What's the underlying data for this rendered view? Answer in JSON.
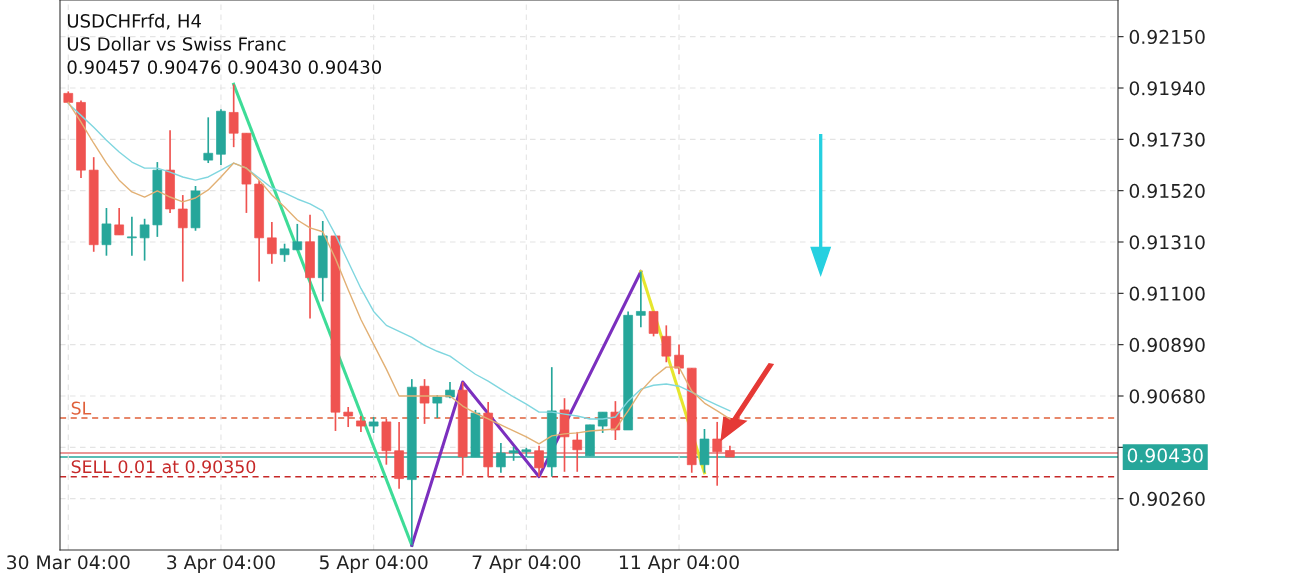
{
  "chart_data": {
    "type": "candlestick",
    "title": "USDCHFrfd, H4",
    "subtitle": "US Dollar vs Swiss Franc",
    "annotations": [
      "0.90457 0.90476 0.90430 0.90430"
    ],
    "categories": [
      "30 Mar 04:00",
      null,
      null,
      null,
      null,
      null,
      null,
      null,
      null,
      null,
      null,
      null,
      "3 Apr 04:00",
      null,
      null,
      null,
      null,
      null,
      null,
      null,
      null,
      null,
      null,
      null,
      "5 Apr 04:00",
      null,
      null,
      null,
      null,
      null,
      null,
      null,
      null,
      null,
      null,
      null,
      "7 Apr 04:00",
      null,
      null,
      null,
      null,
      null,
      null,
      null,
      null,
      null,
      null,
      null,
      "11 Apr 04:00",
      null,
      null,
      null,
      null,
      null,
      null,
      null,
      null,
      null,
      null,
      null,
      null,
      null,
      null,
      null,
      null,
      null,
      null,
      null,
      null,
      null,
      null,
      null,
      null,
      null,
      null,
      null,
      null,
      null,
      null,
      null,
      null,
      null,
      null
    ],
    "ohlc": [
      [
        0.91918,
        0.91926,
        0.91877,
        0.91881
      ],
      [
        0.91881,
        0.91889,
        0.91572,
        0.91604
      ],
      [
        0.91604,
        0.91657,
        0.9127,
        0.91299
      ],
      [
        0.91299,
        0.91449,
        0.91254,
        0.91384
      ],
      [
        0.9138,
        0.91449,
        0.91339,
        0.91339
      ],
      [
        0.91327,
        0.91413,
        0.91254,
        0.91331
      ],
      [
        0.91327,
        0.91405,
        0.91234,
        0.9138
      ],
      [
        0.9138,
        0.91637,
        0.91331,
        0.91604
      ],
      [
        0.91604,
        0.91767,
        0.91429,
        0.91445
      ],
      [
        0.91445,
        0.91502,
        0.91148,
        0.91368
      ],
      [
        0.91368,
        0.91539,
        0.91356,
        0.91519
      ],
      [
        0.91645,
        0.9182,
        0.91633,
        0.91673
      ],
      [
        0.91669,
        0.91853,
        0.91625,
        0.91845
      ],
      [
        0.9184,
        0.91955,
        0.91698,
        0.91755
      ],
      [
        0.91755,
        0.91755,
        0.91429,
        0.91547
      ],
      [
        0.91547,
        0.91563,
        0.91148,
        0.91327
      ],
      [
        0.91327,
        0.91392,
        0.91221,
        0.91262
      ],
      [
        0.91258,
        0.91303,
        0.91229,
        0.91282
      ],
      [
        0.91278,
        0.91384,
        0.91278,
        0.91311
      ],
      [
        0.91311,
        0.91421,
        0.90997,
        0.91164
      ],
      [
        0.91164,
        0.91396,
        0.91067,
        0.91335
      ],
      [
        0.91335,
        0.91335,
        0.90537,
        0.90614
      ],
      [
        0.90614,
        0.90635,
        0.90553,
        0.90598
      ],
      [
        0.90578,
        0.90598,
        0.90533,
        0.90557
      ],
      [
        0.90557,
        0.90594,
        0.90529,
        0.90574
      ],
      [
        0.90574,
        0.90586,
        0.90399,
        0.90456
      ],
      [
        0.90456,
        0.90574,
        0.90301,
        0.90342
      ],
      [
        0.90338,
        0.90749,
        0.90069,
        0.90716
      ],
      [
        0.9072,
        0.90749,
        0.90566,
        0.90651
      ],
      [
        0.90651,
        0.90684,
        0.9059,
        0.90676
      ],
      [
        0.90676,
        0.90737,
        0.90671,
        0.90704
      ],
      [
        0.90704,
        0.90737,
        0.90354,
        0.90431
      ],
      [
        0.90431,
        0.90623,
        0.90431,
        0.9061
      ],
      [
        0.9061,
        0.90655,
        0.9035,
        0.9039
      ],
      [
        0.9039,
        0.90488,
        0.90366,
        0.90447
      ],
      [
        0.90447,
        0.90472,
        0.90415,
        0.90456
      ],
      [
        0.90452,
        0.90468,
        0.90431,
        0.9046
      ],
      [
        0.90456,
        0.90476,
        0.9035,
        0.90386
      ],
      [
        0.9039,
        0.90798,
        0.9035,
        0.90619
      ],
      [
        0.90623,
        0.90671,
        0.9037,
        0.90513
      ],
      [
        0.905,
        0.90533,
        0.9037,
        0.9046
      ],
      [
        0.90435,
        0.90562,
        0.90435,
        0.90562
      ],
      [
        0.90557,
        0.90614,
        0.90529,
        0.90614
      ],
      [
        0.90614,
        0.90659,
        0.905,
        0.90541
      ],
      [
        0.90541,
        0.91026,
        0.90541,
        0.9101
      ],
      [
        0.9101,
        0.91189,
        0.90961,
        0.91026
      ],
      [
        0.91026,
        0.91026,
        0.90924,
        0.90936
      ],
      [
        0.90924,
        0.90969,
        0.90818,
        0.90843
      ],
      [
        0.90847,
        0.90891,
        0.90769,
        0.90794
      ],
      [
        0.90794,
        0.90794,
        0.90366,
        0.90399
      ],
      [
        0.90399,
        0.90545,
        0.90366,
        0.90504
      ],
      [
        0.90504,
        0.90574,
        0.90313,
        0.90452
      ],
      [
        0.90457,
        0.90476,
        0.9043,
        0.9043
      ],
      null,
      null,
      null,
      null,
      null,
      null,
      null,
      null,
      null,
      null,
      null,
      null,
      null,
      null,
      null,
      null,
      null,
      null,
      null,
      null,
      null,
      null,
      null,
      null,
      null,
      null,
      null,
      null,
      null,
      null
    ],
    "series": [
      {
        "type": "line",
        "color": "#7fd6df",
        "values": [
          0.91877,
          0.91828,
          0.91779,
          0.91726,
          0.91678,
          0.91637,
          0.91612,
          0.91612,
          0.91596,
          0.91576,
          0.91563,
          0.91576,
          0.91604,
          0.91633,
          0.91612,
          0.91572,
          0.91531,
          0.91511,
          0.91486,
          0.91466,
          0.91437,
          0.91339,
          0.91229,
          0.9112,
          0.91026,
          0.90969,
          0.90944,
          0.9092,
          0.90887,
          0.90863,
          0.90843,
          0.90806,
          0.90769,
          0.90741,
          0.90708,
          0.90676,
          0.90647,
          0.90614,
          0.90614,
          0.90606,
          0.90598,
          0.90586,
          0.90586,
          0.90594,
          0.90659,
          0.90708,
          0.90724,
          0.90729,
          0.9072,
          0.90696,
          0.90667,
          0.90643,
          0.90619,
          null,
          null,
          null,
          null,
          null,
          null,
          null,
          null,
          null,
          null,
          null,
          null,
          null,
          null,
          null,
          null,
          null,
          null,
          null,
          null,
          null,
          null,
          null,
          null,
          null,
          null,
          null,
          null,
          null,
          null
        ]
      },
      {
        "type": "line",
        "color": "#e2b074",
        "values": [
          0.91881,
          0.918,
          0.91714,
          0.91633,
          0.91563,
          0.91515,
          0.91494,
          0.91519,
          0.91494,
          0.91474,
          0.9149,
          0.91523,
          0.91576,
          0.91633,
          0.91612,
          0.91563,
          0.91502,
          0.91453,
          0.914,
          0.91368,
          0.91352,
          0.91242,
          0.91115,
          0.90993,
          0.90891,
          0.9079,
          0.9068,
          0.9068,
          0.9068,
          0.9068,
          0.9068,
          0.90639,
          0.9061,
          0.90586,
          0.90562,
          0.90537,
          0.90513,
          0.90484,
          0.90517,
          0.90525,
          0.90529,
          0.90537,
          0.90541,
          0.90545,
          0.90619,
          0.907,
          0.90757,
          0.90798,
          0.90798,
          0.907,
          0.90651,
          0.90619,
          0.90586,
          null,
          null,
          null,
          null,
          null,
          null,
          null,
          null,
          null,
          null,
          null,
          null,
          null,
          null,
          null,
          null,
          null,
          null,
          null,
          null,
          null,
          null,
          null,
          null,
          null,
          null,
          null,
          null,
          null,
          null
        ]
      },
      {
        "type": "line",
        "color": "#3ddc97",
        "values": [
          null,
          null,
          null,
          null,
          null,
          null,
          null,
          null,
          null,
          null,
          null,
          null,
          null,
          0.91955,
          null,
          null,
          null,
          null,
          null,
          null,
          null,
          null,
          null,
          null,
          null,
          null,
          null,
          0.90069,
          null,
          null,
          null,
          null,
          null,
          null,
          null,
          null,
          null,
          null,
          null,
          null,
          null,
          null,
          null,
          null,
          null,
          null,
          null,
          null,
          null,
          null,
          null,
          null,
          null,
          null,
          null,
          null,
          null,
          null,
          null,
          null,
          null,
          null,
          null,
          null,
          null,
          null,
          null,
          null,
          null,
          null,
          null,
          null,
          null,
          null,
          null,
          null,
          null,
          null,
          null,
          null,
          null,
          null,
          null
        ]
      },
      {
        "type": "line",
        "color": "#7b2fbe",
        "values": [
          null,
          null,
          null,
          null,
          null,
          null,
          null,
          null,
          null,
          null,
          null,
          null,
          null,
          null,
          null,
          null,
          null,
          null,
          null,
          null,
          null,
          null,
          null,
          null,
          null,
          null,
          null,
          0.90069,
          null,
          null,
          null,
          0.90737,
          null,
          null,
          null,
          null,
          null,
          0.9035,
          null,
          null,
          null,
          null,
          null,
          null,
          null,
          0.91189,
          null,
          null,
          null,
          null,
          null,
          null,
          null,
          null,
          null,
          null,
          null,
          null,
          null,
          null,
          null,
          null,
          null,
          null,
          null,
          null,
          null,
          null,
          null,
          null,
          null,
          null,
          null,
          null,
          null,
          null,
          null,
          null,
          null,
          null,
          null,
          null,
          null
        ]
      },
      {
        "type": "line",
        "color": "#e6e62e",
        "values": [
          null,
          null,
          null,
          null,
          null,
          null,
          null,
          null,
          null,
          null,
          null,
          null,
          null,
          null,
          null,
          null,
          null,
          null,
          null,
          null,
          null,
          null,
          null,
          null,
          null,
          null,
          null,
          null,
          null,
          null,
          null,
          null,
          null,
          null,
          null,
          null,
          null,
          null,
          null,
          null,
          null,
          null,
          null,
          null,
          null,
          0.91189,
          null,
          null,
          null,
          null,
          0.90366,
          null,
          null,
          null,
          null,
          null,
          null,
          null,
          null,
          null,
          null,
          null,
          null,
          null,
          null,
          null,
          null,
          null,
          null,
          null,
          null,
          null,
          null,
          null,
          null,
          null,
          null,
          null,
          null,
          null,
          null,
          null,
          null
        ]
      }
    ],
    "ref_lines": [
      {
        "axis": "y",
        "value": 0.9059,
        "label": "SL",
        "color": "#e0603a",
        "line_style": "dashed"
      },
      {
        "axis": "y",
        "value": 0.9035,
        "label": "SELL 0.01 at 0.90350",
        "color": "#c62828",
        "line_style": "dashed"
      },
      {
        "axis": "y",
        "value": 0.90447,
        "color": "#e57373",
        "line_style": "solid"
      },
      {
        "axis": "y",
        "value": 0.9043,
        "label": "0.90430",
        "color": "#26a69a",
        "line_style": "solid"
      }
    ],
    "ylim": [
      0.9005,
      0.923
    ],
    "yticks": [
      {
        "value": 0.9026,
        "label": "0.90260"
      },
      {
        "value": 0.9047,
        "label": null
      },
      {
        "value": 0.9068,
        "label": "0.90680"
      },
      {
        "value": 0.9089,
        "label": "0.90890"
      },
      {
        "value": 0.911,
        "label": "0.91100"
      },
      {
        "value": 0.9131,
        "label": "0.91310"
      },
      {
        "value": 0.9152,
        "label": "0.91520"
      },
      {
        "value": 0.9173,
        "label": "0.91730"
      },
      {
        "value": 0.9194,
        "label": "0.91940"
      },
      {
        "value": 0.9215,
        "label": "0.92150"
      }
    ],
    "grid": true
  }
}
